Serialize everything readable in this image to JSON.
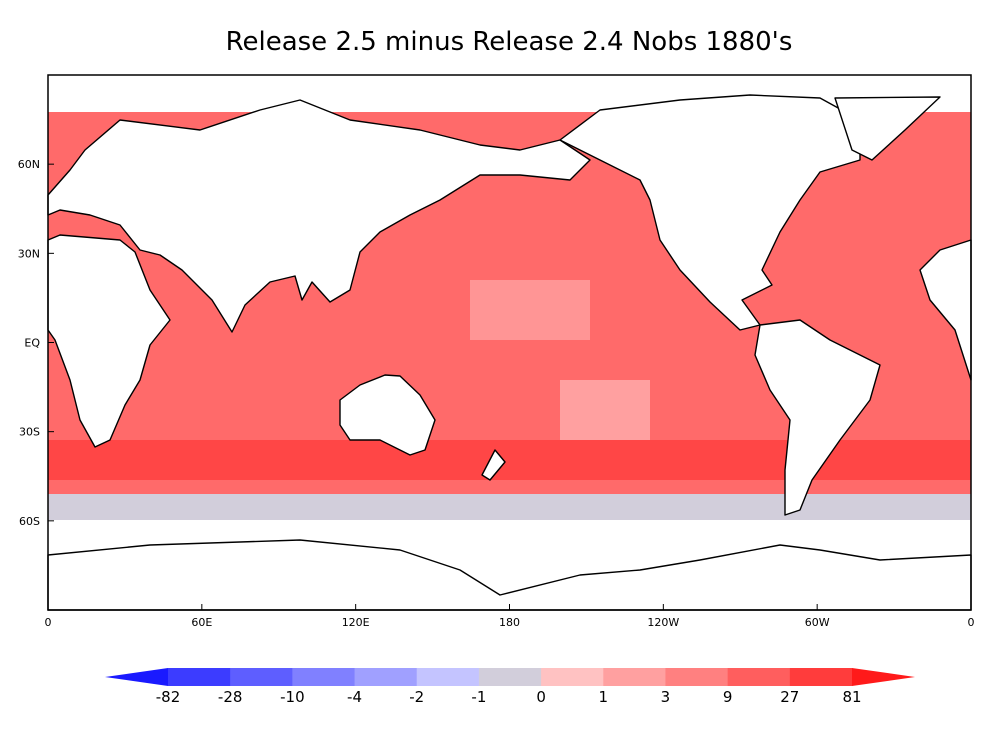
{
  "chart_data": {
    "type": "map",
    "title": "Release 2.5 minus Release 2.4  Nobs 1880's",
    "xlim": [
      0,
      360
    ],
    "ylim": [
      -90,
      90
    ],
    "xticks": [
      0,
      {
        "value": 60,
        "label": "60E"
      },
      {
        "value": 120,
        "label": "120E"
      },
      180,
      {
        "value": 240,
        "label": "120W"
      },
      {
        "value": 300,
        "label": "60W"
      },
      {
        "value": 360,
        "label": "0"
      }
    ],
    "yticks": [
      {
        "value": -60,
        "label": "60S"
      },
      {
        "value": -30,
        "label": "30S"
      },
      {
        "value": 0,
        "label": "EQ"
      },
      {
        "value": 30,
        "label": "30N"
      },
      {
        "value": 60,
        "label": "60N"
      }
    ],
    "colorbar": {
      "levels": [
        -82,
        -28,
        -10,
        -4,
        -2,
        -1,
        0,
        1,
        3,
        9,
        27,
        81
      ],
      "colors": [
        "#1a1aff",
        "#3c3cff",
        "#5e5eff",
        "#8080ff",
        "#a0a0ff",
        "#c4c4ff",
        "#d2cedb",
        "#ffc2c2",
        "#ffa0a0",
        "#ff8080",
        "#ff5e5e",
        "#ff3c3c",
        "#ff1a1a"
      ]
    }
  }
}
